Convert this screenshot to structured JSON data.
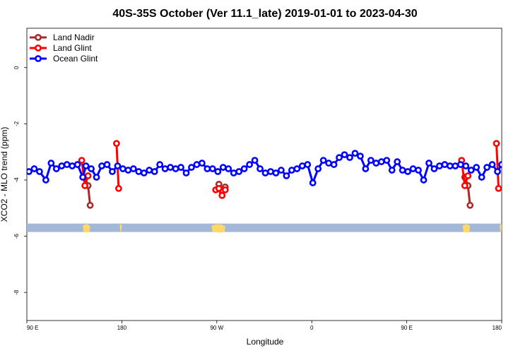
{
  "chart_data": {
    "type": "line",
    "title": "40S-35S October (Ver 11.1_late)   2019-01-01 to 2023-04-30",
    "xlabel": "Longitude",
    "ylabel": "XCO2 - MLO trend (ppm)",
    "xlim": [
      90,
      450
    ],
    "ylim": [
      -9,
      1.4
    ],
    "x_ticks": [
      {
        "value": 90,
        "label": "90 E"
      },
      {
        "value": 180,
        "label": "180"
      },
      {
        "value": 270,
        "label": "90 W"
      },
      {
        "value": 360,
        "label": "0"
      },
      {
        "value": 450,
        "label": "90 E"
      },
      {
        "value": 540,
        "label": "180"
      }
    ],
    "y_ticks": [
      {
        "value": 0,
        "label": "0"
      },
      {
        "value": -2,
        "label": "-2"
      },
      {
        "value": -4,
        "label": "-4"
      },
      {
        "value": -6,
        "label": "-6"
      },
      {
        "value": -8,
        "label": "-8"
      }
    ],
    "x_extent": [
      90,
      540
    ],
    "legend_position": "top-left",
    "land_band": {
      "y": [
        -5.85,
        -5.55
      ],
      "ocean_color": "#a3b8d8",
      "land_color": "#ffd966"
    },
    "series": [
      {
        "name": "Land Nadir",
        "color": "#a52a2a",
        "segments": [
          {
            "x": [
              145,
              148,
              150
            ],
            "y": [
              -3.9,
              -4.2,
              -4.9
            ]
          },
          {
            "x": [
              272,
              275,
              278
            ],
            "y": [
              -4.15,
              -4.4,
              -4.25
            ]
          },
          {
            "x": [
              505,
              508,
              510
            ],
            "y": [
              -3.9,
              -4.2,
              -4.9
            ]
          }
        ]
      },
      {
        "name": "Land Glint",
        "color": "#ff0000",
        "segments": [
          {
            "x": [
              142,
              145,
              148
            ],
            "y": [
              -3.3,
              -4.2,
              -3.85
            ]
          },
          {
            "x": [
              175,
              177
            ],
            "y": [
              -2.7,
              -4.3
            ]
          },
          {
            "x": [
              269,
              272,
              275,
              278
            ],
            "y": [
              -4.35,
              -4.3,
              -4.55,
              -4.35
            ]
          },
          {
            "x": [
              502,
              505,
              508
            ],
            "y": [
              -3.3,
              -4.2,
              -3.85
            ]
          },
          {
            "x": [
              535,
              537
            ],
            "y": [
              -2.7,
              -4.3
            ]
          }
        ]
      },
      {
        "name": "Ocean Glint",
        "color": "#0000ff",
        "segments": [
          {
            "x": [
              92,
              97,
              102,
              108,
              113,
              118,
              123,
              128,
              133,
              138,
              143,
              146,
              151,
              156,
              161,
              166,
              171,
              176,
              181,
              186,
              191,
              196,
              201,
              206,
              211,
              216,
              221,
              226,
              231,
              236,
              241,
              246,
              251,
              256,
              261,
              266
            ],
            "y": [
              -3.7,
              -3.6,
              -3.7,
              -4.0,
              -3.4,
              -3.6,
              -3.5,
              -3.45,
              -3.5,
              -3.45,
              -3.9,
              -3.5,
              -3.6,
              -3.9,
              -3.5,
              -3.45,
              -3.7,
              -3.5,
              -3.6,
              -3.65,
              -3.6,
              -3.7,
              -3.75,
              -3.65,
              -3.7,
              -3.45,
              -3.6,
              -3.55,
              -3.6,
              -3.55,
              -3.75,
              -3.55,
              -3.45,
              -3.4,
              -3.6,
              -3.6
            ]
          },
          {
            "x": [
              271,
              276,
              281,
              286,
              291,
              296,
              301,
              306,
              311,
              316,
              321,
              326,
              331,
              336,
              341,
              346,
              351,
              356,
              361,
              366,
              371,
              376,
              381,
              386,
              391,
              396,
              401,
              406,
              411,
              416,
              421,
              426,
              431,
              436,
              441,
              446,
              451,
              456,
              461,
              466,
              471,
              476,
              481,
              486,
              491,
              496,
              501,
              506,
              511,
              516,
              521,
              526,
              531,
              536,
              540
            ],
            "y": [
              -3.7,
              -3.55,
              -3.6,
              -3.75,
              -3.7,
              -3.6,
              -3.45,
              -3.3,
              -3.6,
              -3.75,
              -3.7,
              -3.75,
              -3.65,
              -3.85,
              -3.65,
              -3.6,
              -3.5,
              -3.45,
              -4.1,
              -3.6,
              -3.3,
              -3.4,
              -3.45,
              -3.2,
              -3.1,
              -3.2,
              -3.05,
              -3.15,
              -3.6,
              -3.3,
              -3.4,
              -3.35,
              -3.3,
              -3.65,
              -3.35,
              -3.65,
              -3.7,
              -3.6,
              -3.65,
              -4.0,
              -3.4,
              -3.6,
              -3.5,
              -3.45,
              -3.5,
              -3.5,
              -3.45,
              -3.5,
              -3.65,
              -3.55,
              -3.9,
              -3.55,
              -3.45,
              -3.7,
              -3.45
            ]
          }
        ]
      }
    ]
  }
}
